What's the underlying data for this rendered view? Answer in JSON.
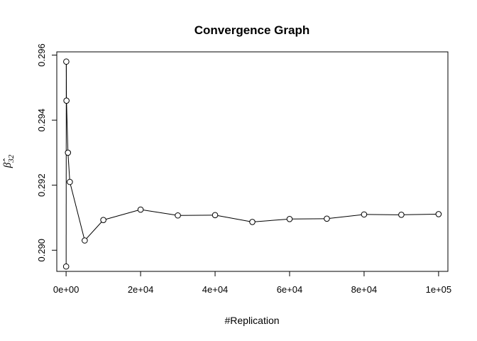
{
  "chart_data": {
    "type": "line",
    "title": "Convergence Graph",
    "xlabel": "#Replication",
    "ylabel": "β̂",
    "ylabel_subscript": "32",
    "xlim": [
      -2500,
      102500
    ],
    "ylim": [
      0.28935,
      0.2961
    ],
    "x_ticks": [
      0,
      20000,
      40000,
      60000,
      80000,
      100000
    ],
    "x_tick_labels": [
      "0e+00",
      "2e+04",
      "4e+04",
      "6e+04",
      "8e+04",
      "1e+05"
    ],
    "y_ticks": [
      0.29,
      0.292,
      0.294,
      0.296
    ],
    "y_tick_labels": [
      "0.290",
      "0.292",
      "0.294",
      "0.296"
    ],
    "grid": false,
    "legend": "none",
    "series": [
      {
        "x": [
          10,
          50,
          100,
          500,
          1000,
          5000,
          10000,
          20000,
          30000,
          40000,
          50000,
          60000,
          70000,
          80000,
          90000,
          100000
        ],
        "y": [
          0.2895,
          0.2958,
          0.2946,
          0.293,
          0.2921,
          0.2903,
          0.29093,
          0.29125,
          0.29107,
          0.29108,
          0.29087,
          0.29096,
          0.29097,
          0.2911,
          0.29109,
          0.29111
        ]
      }
    ]
  }
}
